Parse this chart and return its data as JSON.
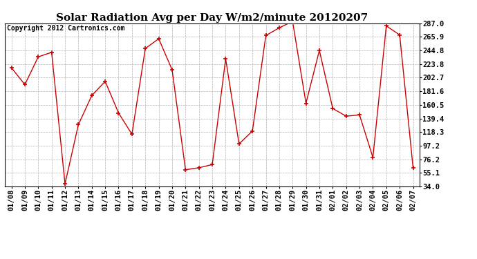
{
  "title": "Solar Radiation Avg per Day W/m2/minute 20120207",
  "copyright": "Copyright 2012 Cartronics.com",
  "dates": [
    "01/08",
    "01/09",
    "01/10",
    "01/11",
    "01/12",
    "01/13",
    "01/14",
    "01/15",
    "01/16",
    "01/17",
    "01/18",
    "01/19",
    "01/20",
    "01/21",
    "01/22",
    "01/23",
    "01/24",
    "01/25",
    "01/26",
    "01/27",
    "01/28",
    "01/29",
    "01/30",
    "01/31",
    "02/01",
    "02/02",
    "02/03",
    "02/04",
    "02/05",
    "02/06",
    "02/07"
  ],
  "values": [
    218.0,
    192.0,
    235.0,
    242.0,
    38.0,
    130.0,
    175.0,
    197.0,
    148.0,
    115.0,
    248.0,
    263.0,
    215.0,
    60.0,
    63.0,
    68.0,
    232.0,
    100.0,
    120.0,
    268.0,
    280.0,
    290.0,
    163.0,
    245.0,
    155.0,
    143.0,
    145.0,
    79.0,
    283.0,
    269.0,
    63.0
  ],
  "line_color": "#cc0000",
  "marker": "+",
  "marker_size": 5,
  "background_color": "#ffffff",
  "plot_bg_color": "#ffffff",
  "grid_color": "#aaaaaa",
  "ylim": [
    34.0,
    287.0
  ],
  "yticks": [
    34.0,
    55.1,
    76.2,
    97.2,
    118.3,
    139.4,
    160.5,
    181.6,
    202.7,
    223.8,
    244.8,
    265.9,
    287.0
  ],
  "title_fontsize": 11,
  "copyright_fontsize": 7,
  "tick_fontsize": 7.5
}
